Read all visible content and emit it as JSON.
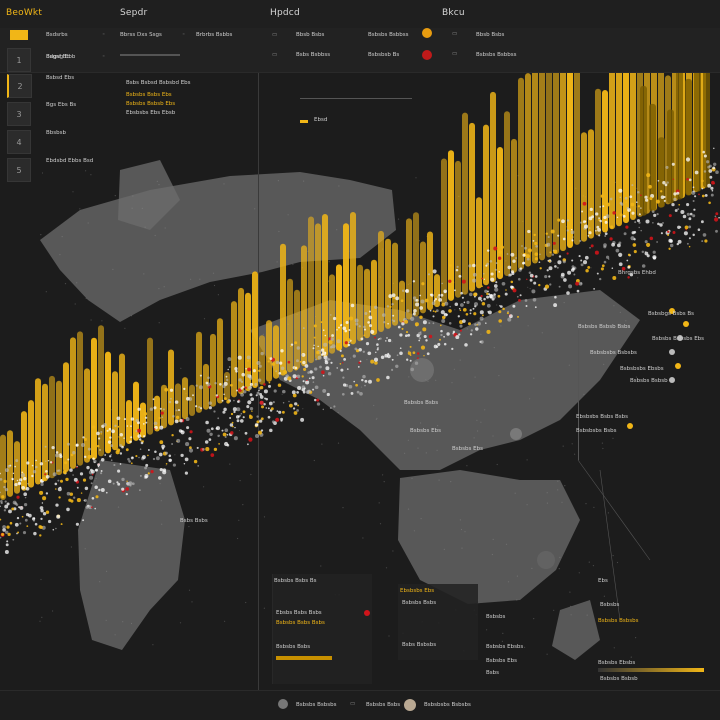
{
  "topbar": {
    "tabs": [
      "BeoWkt",
      "Sepdr",
      "Hpdcd",
      "Bkcu"
    ]
  },
  "header": {
    "col1": [
      "Bsdsrbs",
      "Bbrss Dxs Ssgs",
      "Brbrbs Bsbbs"
    ],
    "col2": [
      "Bbsb Bsbs",
      "Bsbsbs Bsbbss",
      "Bsbs Bsbbss",
      "Bsbsbsb Bs"
    ],
    "sub": "Bsgsf Bd"
  },
  "sidebar": {
    "items": [
      "1",
      "2",
      "3",
      "4",
      "5"
    ]
  },
  "left_labels": [
    "Bdgsg Ebb",
    "Bsbsd Ebs",
    "Bgs Ebs Bs",
    "Bbsbsb",
    "Ebdsbd Ebbs Bsd"
  ],
  "mid_labels": [
    "Bsbs Bsbsd Bsbsbd Ebs",
    "Bsbsbs Bsbs Ebs",
    "Bsbsbs Bsbsb Ebs",
    "Ebsbsbs Ebs Ebsb"
  ],
  "top_right_label": "Ebsd",
  "map_labels": {
    "map_title": "Bhrgsbs Ehbd",
    "near_circle": "Bsbsbs Bsbs",
    "sea": "Bsbsbs Ebs",
    "south": "Bsbs Bsbs",
    "asia": "Bsbsbs Ebs"
  },
  "right_list": [
    "Bsbsbgs Bsbs Bs",
    "Bsbsbs Bsbsb Bsbs",
    "Bsbsbs Bsbsbs Ebs",
    "Bsbsbsbs Bsbsbs",
    "Bsbsbsbs Ebsbs",
    "Bsbsbs Bsbsb",
    "Ebsbsbs Bsbs Bsbs",
    "Bsbsbsbs Bsbs"
  ],
  "bottom_left": {
    "title": "Bsbsbs Bsbs Bs",
    "rows": [
      "Ebsbs Bsbs Bsbs",
      "Bsbsbs Bsbs Bsbs",
      "Bsbsbs Bsbs"
    ]
  },
  "bottom_mid": {
    "title": "Ebsbsbs Ebs",
    "rows": [
      "Bsbsbs Bsbs",
      "Bsbs Bsbsbs"
    ]
  },
  "bottom_mid2": {
    "title": "Bsbsbs Ebsbs",
    "rows": [
      "Bsbsbs",
      "Bsbsbs Ebs",
      "Bsbs"
    ]
  },
  "bottom_right": {
    "title": "Bsbsbs Bsbsbs",
    "rows": [
      "Ebs",
      "Bsbsbs",
      "Bsbsbs Ebsbs",
      "Bsbsbs Bsbsb"
    ]
  },
  "footer": {
    "items": [
      "Bsbsbs Bsbsbs",
      "Bsbsbs Bsbs",
      "Bsbsbsbs Bsbsbs"
    ]
  },
  "colors": {
    "accent": "#f1b617",
    "accent_dark": "#c89000",
    "red": "#d0141a",
    "land": "#6c6c6c",
    "bg": "#1c1c1c"
  }
}
